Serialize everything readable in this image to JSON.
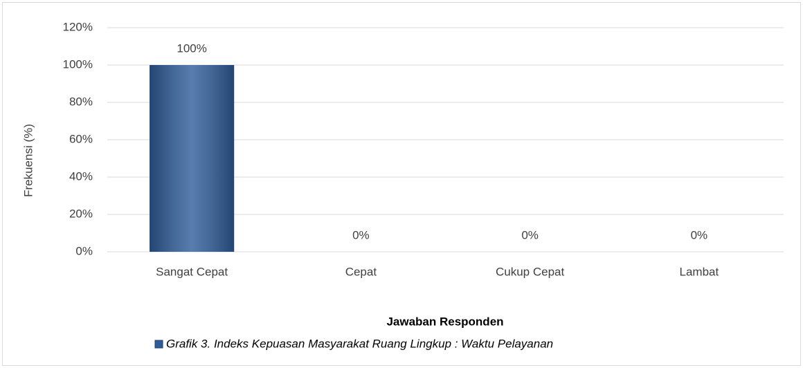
{
  "chart_data": {
    "type": "bar",
    "categories": [
      "Sangat Cepat",
      "Cepat",
      "Cukup Cepat",
      "Lambat"
    ],
    "series": [
      {
        "name": "Grafik 3. Indeks Kepuasan Masyarakat Ruang Lingkup : Waktu Pelayanan",
        "color": "#2e5c99",
        "values": [
          100,
          0,
          0,
          0
        ],
        "value_labels": [
          "100%",
          "0%",
          "0%",
          "0%"
        ]
      }
    ],
    "ylim": [
      0,
      120
    ],
    "yticks": [
      {
        "value": 0,
        "label": "0%"
      },
      {
        "value": 20,
        "label": "20%"
      },
      {
        "value": 40,
        "label": "40%"
      },
      {
        "value": 60,
        "label": "60%"
      },
      {
        "value": 80,
        "label": "80%"
      },
      {
        "value": 100,
        "label": "100%"
      },
      {
        "value": 120,
        "label": "120%"
      }
    ],
    "y_label": "Frekuensi (%)",
    "x_label": "Jawaban Responden",
    "grid": true
  }
}
